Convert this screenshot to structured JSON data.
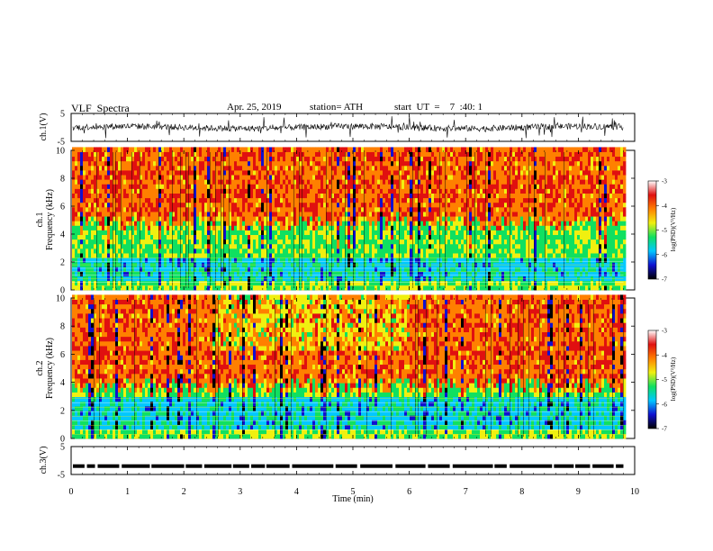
{
  "header": {
    "title": "VLF  Spectra",
    "date": "Apr. 25, 2019",
    "station": "station= ATH",
    "start": "start  UT  =    7  :40: 1"
  },
  "chart_data": {
    "type": "heatmap",
    "title": "VLF  Spectra",
    "xlabel": "Time  (min)",
    "xlim": [
      0,
      10
    ],
    "x_ticks": [
      "0",
      "1",
      "2",
      "3",
      "4",
      "5",
      "6",
      "7",
      "8",
      "9",
      "10"
    ],
    "data_extent_min": 9.8,
    "panels": [
      {
        "id": "ch1-waveform",
        "ylabel": "ch.1(V)",
        "ylim": [
          -5,
          5
        ],
        "y_ticks": [
          "5",
          "-5"
        ],
        "series": [
          {
            "values": [
              0,
              1.2,
              -1.5,
              0.8,
              -0.6,
              1.4,
              -1.1,
              0.5
            ]
          }
        ]
      },
      {
        "id": "ch1-spectrogram",
        "ylabel_lines": [
          "ch.1",
          "Frequency  (kHz)"
        ],
        "ylim": [
          0,
          10
        ],
        "y_ticks": [
          "0",
          "2",
          "4",
          "6",
          "8",
          "10"
        ],
        "colorbar": {
          "label": "log(PSD)(V²/Hz)",
          "range": [
            -7,
            -3
          ],
          "ticks": [
            "-3",
            "-4",
            "-5",
            "-6",
            "-7"
          ],
          "colors": [
            "#000000",
            "#1010d0",
            "#00c8ff",
            "#10e060",
            "#f0f010",
            "#ff8000",
            "#e01010",
            "#ffffff"
          ]
        }
      },
      {
        "id": "ch2-spectrogram",
        "ylabel_lines": [
          "ch.2",
          "Frequency  (kHz)"
        ],
        "ylim": [
          0,
          10
        ],
        "y_ticks": [
          "0",
          "2",
          "4",
          "6",
          "8",
          "10"
        ],
        "colorbar": {
          "label": "log(PSD)(V²/Hz)",
          "range": [
            -7,
            -3
          ],
          "ticks": [
            "-3",
            "-4",
            "-5",
            "-6",
            "-7"
          ],
          "colors": [
            "#000000",
            "#1010d0",
            "#00c8ff",
            "#10e060",
            "#f0f010",
            "#ff8000",
            "#e01010",
            "#ffffff"
          ]
        }
      },
      {
        "id": "ch3-waveform",
        "ylabel": "ch.3(V)",
        "ylim": [
          -5,
          5
        ],
        "y_ticks": [
          "5",
          "-5"
        ],
        "series": [
          {
            "values": [
              -2
            ]
          }
        ]
      }
    ]
  }
}
